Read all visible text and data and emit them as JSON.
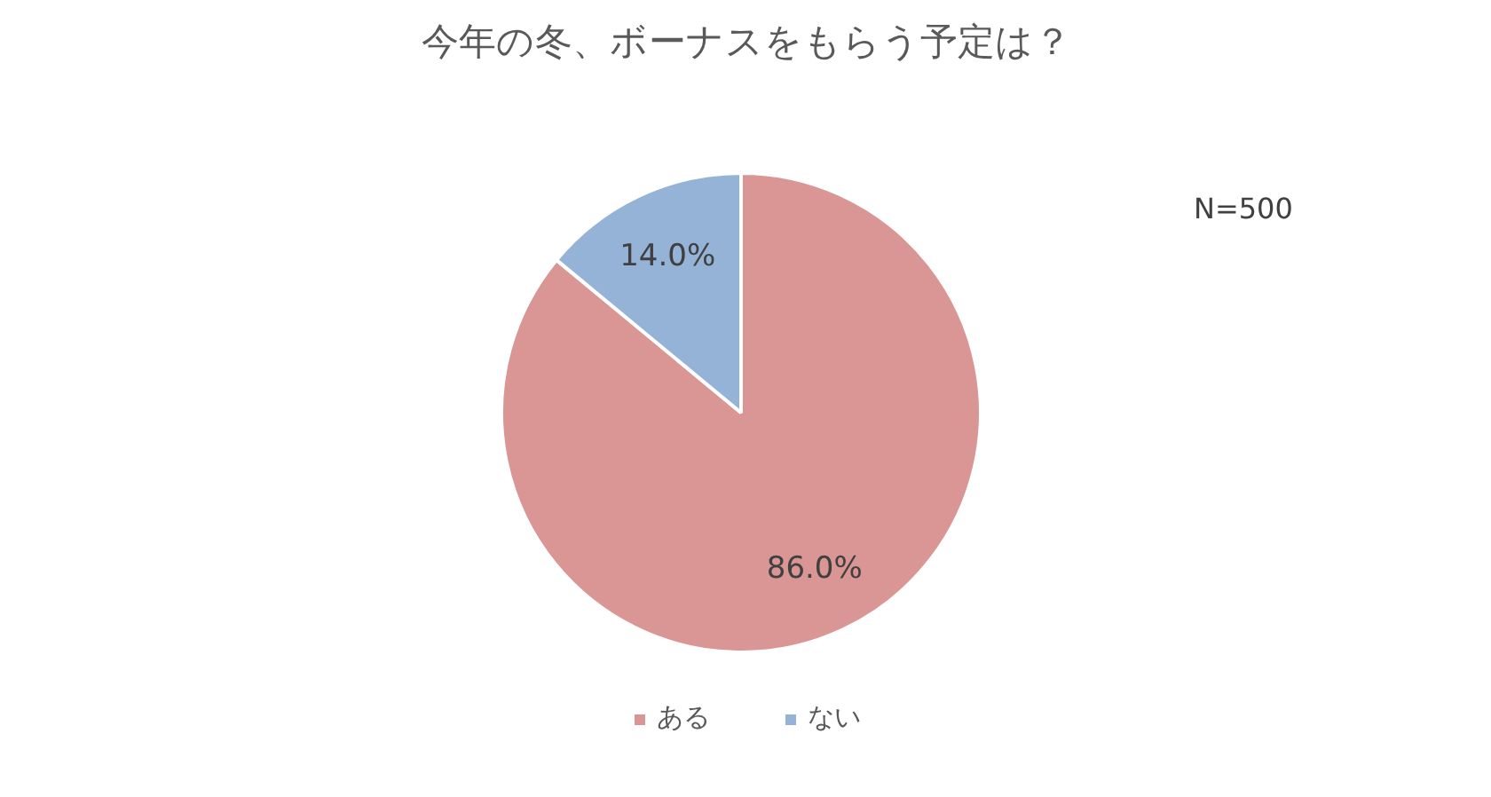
{
  "chart_data": {
    "type": "pie",
    "title": "今年の冬、ボーナスをもらう予定は？",
    "categories": [
      "ある",
      "ない"
    ],
    "values": [
      86.0,
      14.0
    ],
    "colors": [
      "#d99694",
      "#95b3d7"
    ],
    "value_labels": [
      "86.0%",
      "14.0%"
    ],
    "annotations": [
      "N=500"
    ],
    "legend": "bottom"
  }
}
